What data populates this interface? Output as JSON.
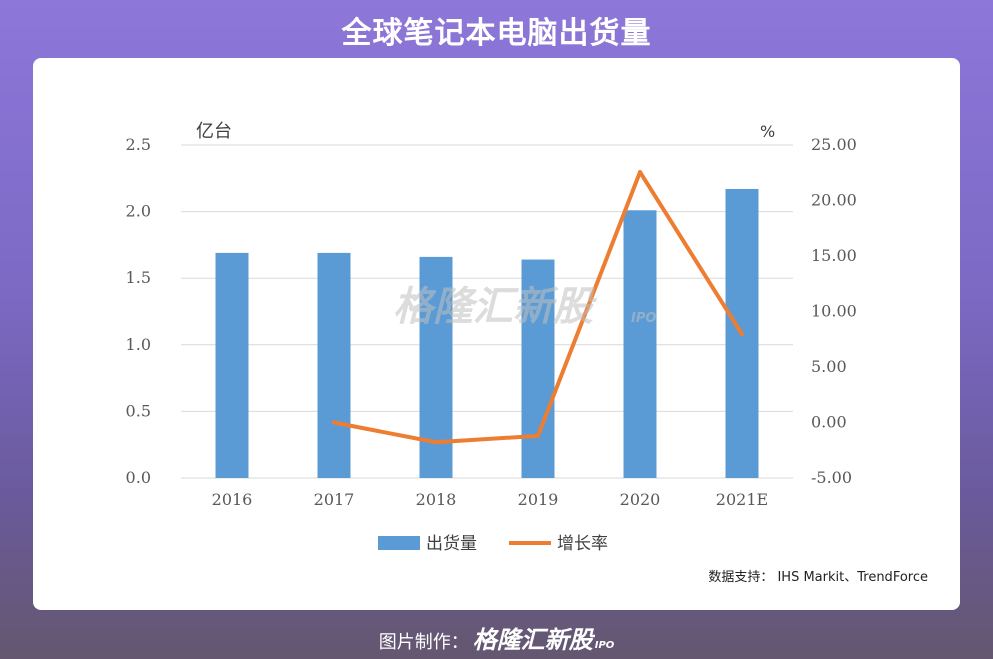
{
  "header": {
    "title": "全球笔记本电脑出货量"
  },
  "chart_data": {
    "type": "bar",
    "categories": [
      "2016",
      "2017",
      "2018",
      "2019",
      "2020",
      "2021E"
    ],
    "series": [
      {
        "name": "出货量",
        "type": "bar",
        "axis": "left",
        "values": [
          1.69,
          1.69,
          1.66,
          1.64,
          2.01,
          2.17
        ]
      },
      {
        "name": "增长率",
        "type": "line",
        "axis": "right",
        "values": [
          null,
          0.0,
          -1.78,
          -1.2,
          22.56,
          7.96
        ]
      }
    ],
    "y_left": {
      "label": "亿台",
      "ticks": [
        "2.5",
        "2.0",
        "1.5",
        "1.0",
        "0.5",
        "0.0"
      ],
      "lim": [
        0,
        2.5
      ]
    },
    "y_right": {
      "label": "%",
      "ticks": [
        "25.00",
        "20.00",
        "15.00",
        "10.00",
        "5.00",
        "0.00",
        "-5.00"
      ],
      "lim": [
        -5,
        25
      ]
    },
    "grid": true,
    "legend": "bottom",
    "colors": {
      "bar": "#5b9bd5",
      "line": "#ed7d31",
      "grid": "#d9d9d9"
    }
  },
  "watermark": {
    "text": "格隆汇新股",
    "sub": "IPO"
  },
  "source": {
    "text": "数据支持： IHS Markit、TrendForce"
  },
  "footer": {
    "label": "图片制作：",
    "brand": "格隆汇新股",
    "sub": "IPO"
  }
}
